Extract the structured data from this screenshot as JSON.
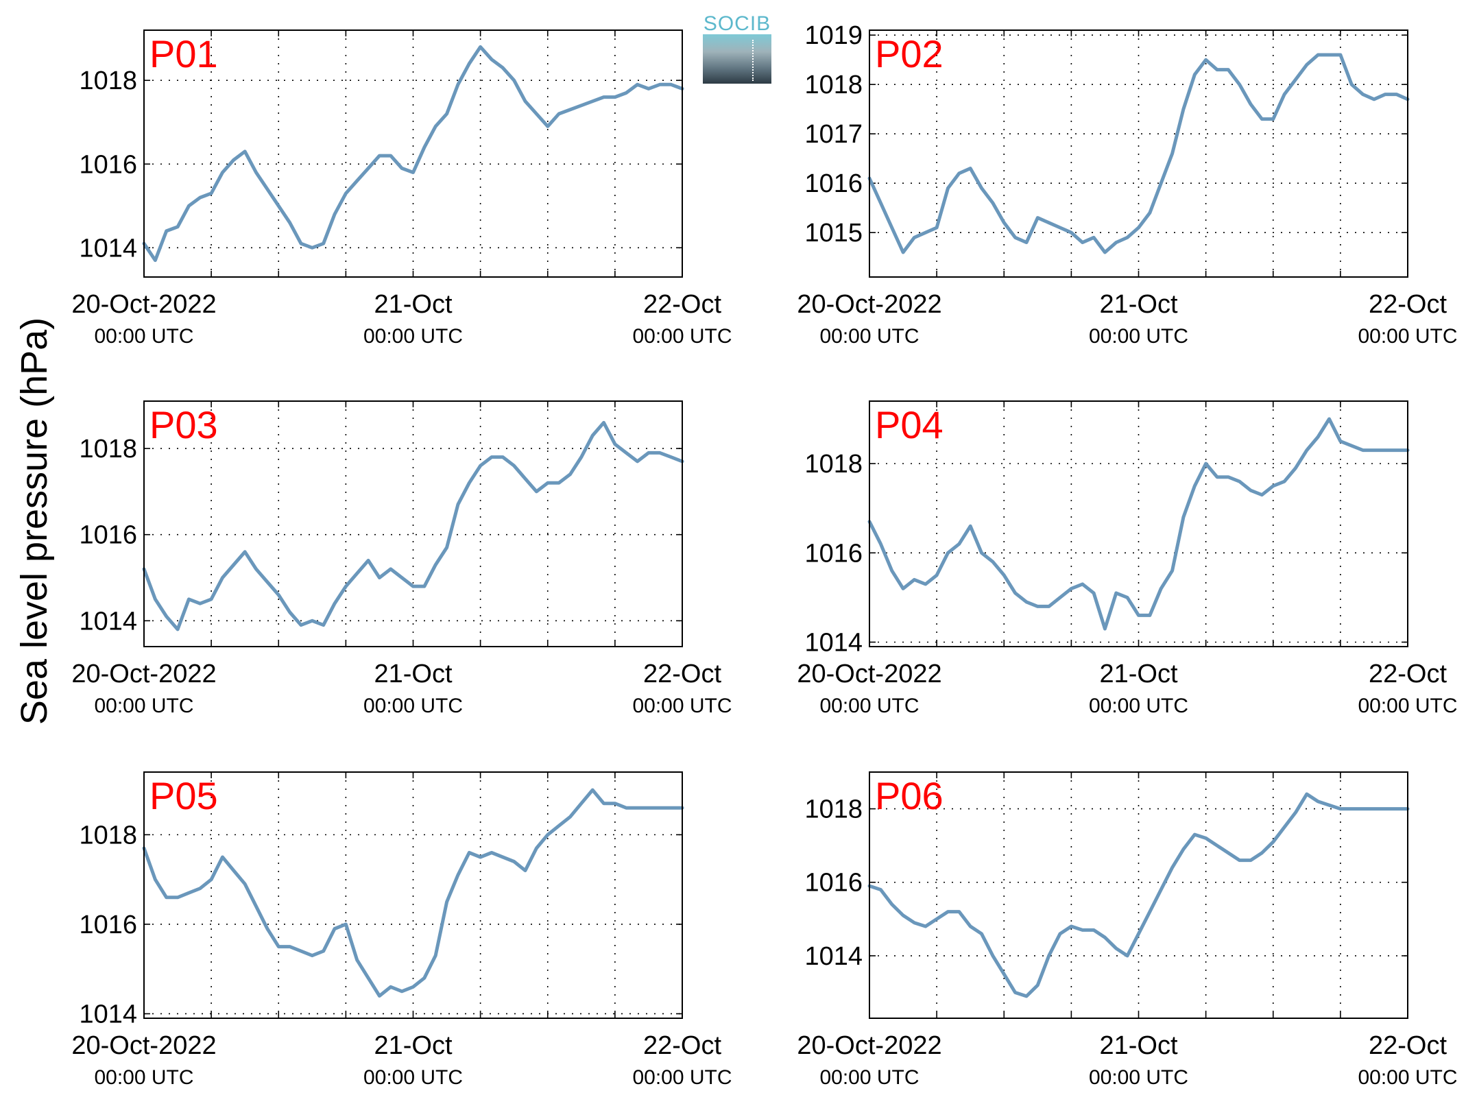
{
  "y_axis_title": "Sea level pressure (hPa)",
  "logo_text": "SOCIB",
  "colors": {
    "line": "#6a97bb",
    "station_label": "#ff0000",
    "axis": "#000000"
  },
  "x_ticks": [
    {
      "date": "2022-10-20T00:00Z",
      "label": "20-Oct-2022",
      "sublabel": "00:00 UTC"
    },
    {
      "date": "2022-10-21T00:00Z",
      "label": "21-Oct",
      "sublabel": "00:00 UTC"
    },
    {
      "date": "2022-10-22T00:00Z",
      "label": "22-Oct",
      "sublabel": "00:00 UTC"
    }
  ],
  "chart_data": [
    {
      "type": "line",
      "panel": "P01",
      "title": "P01",
      "ylim": [
        1013.3,
        1019.2
      ],
      "yticks": [
        1014,
        1016,
        1018
      ],
      "xlim": [
        "2022-10-20T00:00Z",
        "2022-10-22T00:00Z"
      ],
      "grid": true,
      "series": [
        {
          "x_hours": [
            0,
            1,
            2,
            3,
            4,
            5,
            6,
            7,
            8,
            9,
            10,
            11,
            12,
            13,
            14,
            15,
            16,
            17,
            18,
            19,
            20,
            21,
            22,
            23,
            24,
            25,
            26,
            27,
            28,
            29,
            30,
            31,
            32,
            33,
            34,
            35,
            36,
            37,
            38,
            39,
            40,
            41,
            42,
            43,
            44,
            45,
            46,
            47,
            48
          ],
          "values": [
            1014.1,
            1013.7,
            1014.4,
            1014.5,
            1015.0,
            1015.2,
            1015.3,
            1015.8,
            1016.1,
            1016.3,
            1015.8,
            1015.4,
            1015.0,
            1014.6,
            1014.1,
            1014.0,
            1014.1,
            1014.8,
            1015.3,
            1015.6,
            1015.9,
            1016.2,
            1016.2,
            1015.9,
            1015.8,
            1016.4,
            1016.9,
            1017.2,
            1017.9,
            1018.4,
            1018.8,
            1018.5,
            1018.3,
            1018.0,
            1017.5,
            1017.2,
            1016.9,
            1017.2,
            1017.3,
            1017.4,
            1017.5,
            1017.6,
            1017.6,
            1017.7,
            1017.9,
            1017.8,
            1017.9,
            1017.9,
            1017.8
          ]
        }
      ]
    },
    {
      "type": "line",
      "panel": "P02",
      "title": "P02",
      "ylim": [
        1014.1,
        1019.1
      ],
      "yticks": [
        1015,
        1016,
        1017,
        1018,
        1019
      ],
      "xlim": [
        "2022-10-20T00:00Z",
        "2022-10-22T00:00Z"
      ],
      "grid": true,
      "series": [
        {
          "x_hours": [
            0,
            1,
            2,
            3,
            4,
            5,
            6,
            7,
            8,
            9,
            10,
            11,
            12,
            13,
            14,
            15,
            16,
            17,
            18,
            19,
            20,
            21,
            22,
            23,
            24,
            25,
            26,
            27,
            28,
            29,
            30,
            31,
            32,
            33,
            34,
            35,
            36,
            37,
            38,
            39,
            40,
            41,
            42,
            43,
            44,
            45,
            46,
            47,
            48
          ],
          "values": [
            1016.1,
            1015.6,
            1015.1,
            1014.6,
            1014.9,
            1015.0,
            1015.1,
            1015.9,
            1016.2,
            1016.3,
            1015.9,
            1015.6,
            1015.2,
            1014.9,
            1014.8,
            1015.3,
            1015.2,
            1015.1,
            1015.0,
            1014.8,
            1014.9,
            1014.6,
            1014.8,
            1014.9,
            1015.1,
            1015.4,
            1016.0,
            1016.6,
            1017.5,
            1018.2,
            1018.5,
            1018.3,
            1018.3,
            1018.0,
            1017.6,
            1017.3,
            1017.3,
            1017.8,
            1018.1,
            1018.4,
            1018.6,
            1018.6,
            1018.6,
            1018.0,
            1017.8,
            1017.7,
            1017.8,
            1017.8,
            1017.7
          ]
        }
      ]
    },
    {
      "type": "line",
      "panel": "P03",
      "title": "P03",
      "ylim": [
        1013.4,
        1019.1
      ],
      "yticks": [
        1014,
        1016,
        1018
      ],
      "xlim": [
        "2022-10-20T00:00Z",
        "2022-10-22T00:00Z"
      ],
      "grid": true,
      "series": [
        {
          "x_hours": [
            0,
            1,
            2,
            3,
            4,
            5,
            6,
            7,
            8,
            9,
            10,
            11,
            12,
            13,
            14,
            15,
            16,
            17,
            18,
            19,
            20,
            21,
            22,
            23,
            24,
            25,
            26,
            27,
            28,
            29,
            30,
            31,
            32,
            33,
            34,
            35,
            36,
            37,
            38,
            39,
            40,
            41,
            42,
            43,
            44,
            45,
            46,
            47,
            48
          ],
          "values": [
            1015.2,
            1014.5,
            1014.1,
            1013.8,
            1014.5,
            1014.4,
            1014.5,
            1015.0,
            1015.3,
            1015.6,
            1015.2,
            1014.9,
            1014.6,
            1014.2,
            1013.9,
            1014.0,
            1013.9,
            1014.4,
            1014.8,
            1015.1,
            1015.4,
            1015.0,
            1015.2,
            1015.0,
            1014.8,
            1014.8,
            1015.3,
            1015.7,
            1016.7,
            1017.2,
            1017.6,
            1017.8,
            1017.8,
            1017.6,
            1017.3,
            1017.0,
            1017.2,
            1017.2,
            1017.4,
            1017.8,
            1018.3,
            1018.6,
            1018.1,
            1017.9,
            1017.7,
            1017.9,
            1017.9,
            1017.8,
            1017.7
          ]
        }
      ]
    },
    {
      "type": "line",
      "panel": "P04",
      "title": "P04",
      "ylim": [
        1013.9,
        1019.4
      ],
      "yticks": [
        1014,
        1016,
        1018
      ],
      "xlim": [
        "2022-10-20T00:00Z",
        "2022-10-22T00:00Z"
      ],
      "grid": true,
      "series": [
        {
          "x_hours": [
            0,
            1,
            2,
            3,
            4,
            5,
            6,
            7,
            8,
            9,
            10,
            11,
            12,
            13,
            14,
            15,
            16,
            17,
            18,
            19,
            20,
            21,
            22,
            23,
            24,
            25,
            26,
            27,
            28,
            29,
            30,
            31,
            32,
            33,
            34,
            35,
            36,
            37,
            38,
            39,
            40,
            41,
            42,
            43,
            44,
            45,
            46,
            47,
            48
          ],
          "values": [
            1016.7,
            1016.2,
            1015.6,
            1015.2,
            1015.4,
            1015.3,
            1015.5,
            1016.0,
            1016.2,
            1016.6,
            1016.0,
            1015.8,
            1015.5,
            1015.1,
            1014.9,
            1014.8,
            1014.8,
            1015.0,
            1015.2,
            1015.3,
            1015.1,
            1014.3,
            1015.1,
            1015.0,
            1014.6,
            1014.6,
            1015.2,
            1015.6,
            1016.8,
            1017.5,
            1018.0,
            1017.7,
            1017.7,
            1017.6,
            1017.4,
            1017.3,
            1017.5,
            1017.6,
            1017.9,
            1018.3,
            1018.6,
            1019.0,
            1018.5,
            1018.4,
            1018.3,
            1018.3,
            1018.3,
            1018.3,
            1018.3
          ]
        }
      ]
    },
    {
      "type": "line",
      "panel": "P05",
      "title": "P05",
      "ylim": [
        1013.9,
        1019.4
      ],
      "yticks": [
        1014,
        1016,
        1018
      ],
      "xlim": [
        "2022-10-20T00:00Z",
        "2022-10-22T00:00Z"
      ],
      "grid": true,
      "series": [
        {
          "x_hours": [
            0,
            1,
            2,
            3,
            4,
            5,
            6,
            7,
            8,
            9,
            10,
            11,
            12,
            13,
            14,
            15,
            16,
            17,
            18,
            19,
            20,
            21,
            22,
            23,
            24,
            25,
            26,
            27,
            28,
            29,
            30,
            31,
            32,
            33,
            34,
            35,
            36,
            37,
            38,
            39,
            40,
            41,
            42,
            43,
            44,
            45,
            46,
            47,
            48
          ],
          "values": [
            1017.7,
            1017.0,
            1016.6,
            1016.6,
            1016.7,
            1016.8,
            1017.0,
            1017.5,
            1017.2,
            1016.9,
            1016.4,
            1015.9,
            1015.5,
            1015.5,
            1015.4,
            1015.3,
            1015.4,
            1015.9,
            1016.0,
            1015.2,
            1014.8,
            1014.4,
            1014.6,
            1014.5,
            1014.6,
            1014.8,
            1015.3,
            1016.5,
            1017.1,
            1017.6,
            1017.5,
            1017.6,
            1017.5,
            1017.4,
            1017.2,
            1017.7,
            1018.0,
            1018.2,
            1018.4,
            1018.7,
            1019.0,
            1018.7,
            1018.7,
            1018.6,
            1018.6,
            1018.6,
            1018.6,
            1018.6,
            1018.6
          ]
        }
      ]
    },
    {
      "type": "line",
      "panel": "P06",
      "title": "P06",
      "ylim": [
        1012.3,
        1019.0
      ],
      "yticks": [
        1014,
        1016,
        1018
      ],
      "xlim": [
        "2022-10-20T00:00Z",
        "2022-10-22T00:00Z"
      ],
      "grid": true,
      "series": [
        {
          "x_hours": [
            0,
            1,
            2,
            3,
            4,
            5,
            6,
            7,
            8,
            9,
            10,
            11,
            12,
            13,
            14,
            15,
            16,
            17,
            18,
            19,
            20,
            21,
            22,
            23,
            24,
            25,
            26,
            27,
            28,
            29,
            30,
            31,
            32,
            33,
            34,
            35,
            36,
            37,
            38,
            39,
            40,
            41,
            42,
            43,
            44,
            45,
            46,
            47,
            48
          ],
          "values": [
            1015.9,
            1015.8,
            1015.4,
            1015.1,
            1014.9,
            1014.8,
            1015.0,
            1015.2,
            1015.2,
            1014.8,
            1014.6,
            1014.0,
            1013.5,
            1013.0,
            1012.9,
            1013.2,
            1014.0,
            1014.6,
            1014.8,
            1014.7,
            1014.7,
            1014.5,
            1014.2,
            1014.0,
            1014.6,
            1015.2,
            1015.8,
            1016.4,
            1016.9,
            1017.3,
            1017.2,
            1017.0,
            1016.8,
            1016.6,
            1016.6,
            1016.8,
            1017.1,
            1017.5,
            1017.9,
            1018.4,
            1018.2,
            1018.1,
            1018.0,
            1018.0,
            1018.0,
            1018.0,
            1018.0,
            1018.0,
            1018.0
          ]
        }
      ]
    }
  ]
}
